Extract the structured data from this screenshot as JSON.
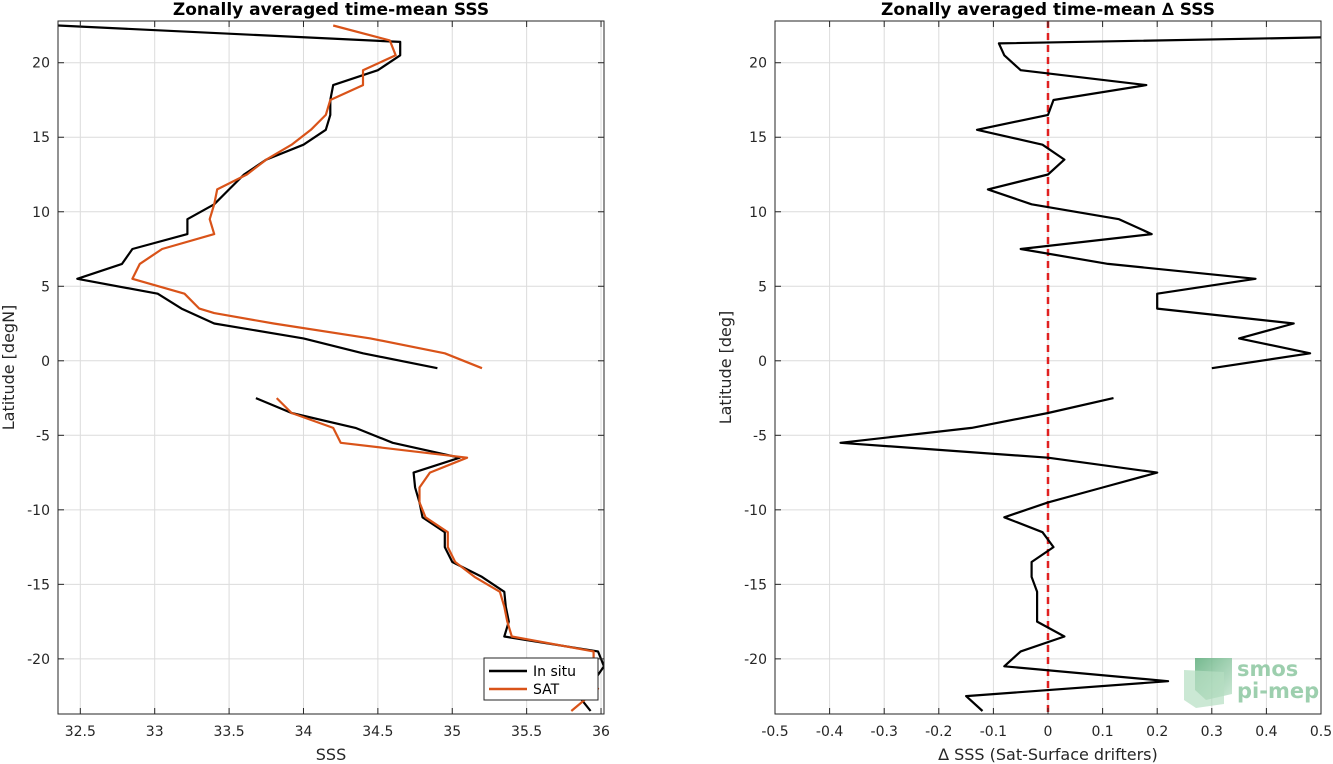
{
  "chart_data": [
    {
      "type": "line",
      "title": "Zonally averaged time-mean SSS",
      "xlabel": "SSS",
      "ylabel": "Latitude [degN]",
      "xlim": [
        32.35,
        36.02
      ],
      "ylim": [
        -23.7,
        22.8
      ],
      "xticks": [
        32.5,
        33,
        33.5,
        34,
        34.5,
        35,
        35.5,
        36
      ],
      "xtick_labels": [
        "32.5",
        "33",
        "33.5",
        "34",
        "34.5",
        "35",
        "35.5",
        "36"
      ],
      "yticks": [
        -20,
        -15,
        -10,
        -5,
        0,
        5,
        10,
        15,
        20
      ],
      "ytick_labels": [
        "-20",
        "-15",
        "-10",
        "-5",
        "0",
        "5",
        "10",
        "15",
        "20"
      ],
      "grid": true,
      "legend": {
        "position": "bottom-right",
        "entries": [
          "In situ",
          "SAT"
        ]
      },
      "series": [
        {
          "name": "In situ",
          "color": "#000000",
          "segments": [
            [
              [
                32.35,
                22.5
              ],
              [
                34.65,
                21.4
              ],
              [
                34.65,
                20.5
              ],
              [
                34.5,
                19.5
              ],
              [
                34.2,
                18.5
              ],
              [
                34.18,
                17.5
              ],
              [
                34.18,
                16.5
              ],
              [
                34.15,
                15.5
              ],
              [
                34.0,
                14.5
              ],
              [
                33.75,
                13.5
              ],
              [
                33.6,
                12.5
              ],
              [
                33.5,
                11.5
              ],
              [
                33.4,
                10.5
              ],
              [
                33.22,
                9.5
              ],
              [
                33.22,
                8.5
              ],
              [
                32.85,
                7.5
              ],
              [
                32.78,
                6.5
              ],
              [
                32.48,
                5.5
              ],
              [
                33.02,
                4.5
              ],
              [
                33.18,
                3.5
              ],
              [
                33.4,
                2.5
              ],
              [
                34.0,
                1.5
              ],
              [
                34.4,
                0.5
              ],
              [
                34.9,
                -0.5
              ]
            ],
            [
              [
                33.68,
                -2.5
              ],
              [
                33.92,
                -3.5
              ],
              [
                34.35,
                -4.5
              ],
              [
                34.6,
                -5.5
              ],
              [
                35.05,
                -6.5
              ],
              [
                34.74,
                -7.5
              ],
              [
                34.75,
                -8.5
              ],
              [
                34.78,
                -9.5
              ],
              [
                34.8,
                -10.5
              ],
              [
                34.95,
                -11.5
              ],
              [
                34.95,
                -12.5
              ],
              [
                35.0,
                -13.5
              ],
              [
                35.2,
                -14.5
              ],
              [
                35.35,
                -15.5
              ],
              [
                35.36,
                -16.5
              ],
              [
                35.38,
                -17.5
              ],
              [
                35.35,
                -18.5
              ],
              [
                35.98,
                -19.5
              ],
              [
                36.02,
                -20.5
              ],
              [
                35.95,
                -21.5
              ],
              [
                35.85,
                -22.5
              ],
              [
                35.93,
                -23.5
              ]
            ]
          ]
        },
        {
          "name": "SAT",
          "color": "#d95319",
          "segments": [
            [
              [
                34.2,
                22.5
              ],
              [
                34.58,
                21.5
              ],
              [
                34.62,
                20.5
              ],
              [
                34.4,
                19.5
              ],
              [
                34.4,
                18.5
              ],
              [
                34.18,
                17.5
              ],
              [
                34.15,
                16.5
              ],
              [
                34.05,
                15.5
              ],
              [
                33.92,
                14.5
              ],
              [
                33.75,
                13.5
              ],
              [
                33.62,
                12.5
              ],
              [
                33.42,
                11.5
              ],
              [
                33.4,
                10.5
              ],
              [
                33.37,
                9.5
              ],
              [
                33.4,
                8.5
              ],
              [
                33.05,
                7.5
              ],
              [
                32.9,
                6.5
              ],
              [
                32.85,
                5.5
              ],
              [
                33.2,
                4.5
              ],
              [
                33.3,
                3.5
              ],
              [
                33.4,
                3.2
              ],
              [
                33.8,
                2.5
              ],
              [
                34.45,
                1.5
              ],
              [
                34.95,
                0.5
              ],
              [
                35.2,
                -0.5
              ]
            ],
            [
              [
                33.82,
                -2.5
              ],
              [
                33.92,
                -3.5
              ],
              [
                34.2,
                -4.5
              ],
              [
                34.25,
                -5.5
              ],
              [
                35.1,
                -6.5
              ],
              [
                34.85,
                -7.5
              ],
              [
                34.78,
                -8.5
              ],
              [
                34.78,
                -9.5
              ],
              [
                34.82,
                -10.5
              ],
              [
                34.97,
                -11.5
              ],
              [
                34.97,
                -12.5
              ],
              [
                35.02,
                -13.5
              ],
              [
                35.15,
                -14.5
              ],
              [
                35.32,
                -15.5
              ],
              [
                35.35,
                -16.5
              ],
              [
                35.37,
                -17.5
              ],
              [
                35.4,
                -18.5
              ],
              [
                35.95,
                -19.5
              ],
              [
                35.95,
                -20.5
              ],
              [
                35.9,
                -21.5
              ],
              [
                35.98,
                -22.0
              ],
              [
                35.8,
                -23.5
              ]
            ]
          ]
        }
      ]
    },
    {
      "type": "line",
      "title": "Zonally averaged time-mean ∆ SSS",
      "xlabel": "∆ SSS (Sat-Surface drifters)",
      "ylabel": "Latitude [deg]",
      "xlim": [
        -0.5,
        0.5
      ],
      "ylim": [
        -23.7,
        22.8
      ],
      "xticks": [
        -0.5,
        -0.4,
        -0.3,
        -0.2,
        -0.1,
        0,
        0.1,
        0.2,
        0.3,
        0.4,
        0.5
      ],
      "xtick_labels": [
        "-0.5",
        "-0.4",
        "-0.3",
        "-0.2",
        "-0.1",
        "0",
        "0.1",
        "0.2",
        "0.3",
        "0.4",
        "0.5"
      ],
      "yticks": [
        -20,
        -15,
        -10,
        -5,
        0,
        5,
        10,
        15,
        20
      ],
      "ytick_labels": [
        "-20",
        "-15",
        "-10",
        "-5",
        "0",
        "5",
        "10",
        "15",
        "20"
      ],
      "grid": true,
      "reference_line": {
        "x": 0,
        "color": "#e02020",
        "style": "dashed"
      },
      "series": [
        {
          "color": "#000000",
          "segments": [
            [
              [
                0.5,
                21.7
              ],
              [
                -0.09,
                21.3
              ],
              [
                -0.08,
                20.5
              ],
              [
                -0.05,
                19.5
              ],
              [
                0.18,
                18.5
              ],
              [
                0.01,
                17.5
              ],
              [
                0.0,
                16.5
              ],
              [
                -0.13,
                15.5
              ],
              [
                -0.01,
                14.5
              ],
              [
                0.03,
                13.5
              ],
              [
                0.0,
                12.5
              ],
              [
                -0.11,
                11.5
              ],
              [
                -0.03,
                10.5
              ],
              [
                0.13,
                9.5
              ],
              [
                0.19,
                8.5
              ],
              [
                -0.05,
                7.5
              ],
              [
                0.11,
                6.5
              ],
              [
                0.38,
                5.5
              ],
              [
                0.2,
                4.5
              ],
              [
                0.2,
                3.5
              ],
              [
                0.45,
                2.5
              ],
              [
                0.35,
                1.5
              ],
              [
                0.48,
                0.5
              ],
              [
                0.3,
                -0.5
              ]
            ],
            [
              [
                0.12,
                -2.5
              ],
              [
                0.0,
                -3.5
              ],
              [
                -0.14,
                -4.5
              ],
              [
                -0.38,
                -5.5
              ],
              [
                0.0,
                -6.5
              ],
              [
                0.2,
                -7.5
              ],
              [
                0.1,
                -8.5
              ],
              [
                0.0,
                -9.5
              ],
              [
                -0.08,
                -10.5
              ],
              [
                -0.01,
                -11.5
              ],
              [
                0.01,
                -12.5
              ],
              [
                -0.03,
                -13.5
              ],
              [
                -0.03,
                -14.5
              ],
              [
                -0.02,
                -15.5
              ],
              [
                -0.02,
                -16.5
              ],
              [
                -0.02,
                -17.5
              ],
              [
                0.03,
                -18.5
              ],
              [
                -0.05,
                -19.5
              ],
              [
                -0.08,
                -20.5
              ],
              [
                0.22,
                -21.5
              ],
              [
                -0.15,
                -22.5
              ],
              [
                -0.12,
                -23.5
              ]
            ]
          ]
        }
      ]
    }
  ],
  "logo": {
    "line1": "smos",
    "line2": "pi-mep"
  }
}
